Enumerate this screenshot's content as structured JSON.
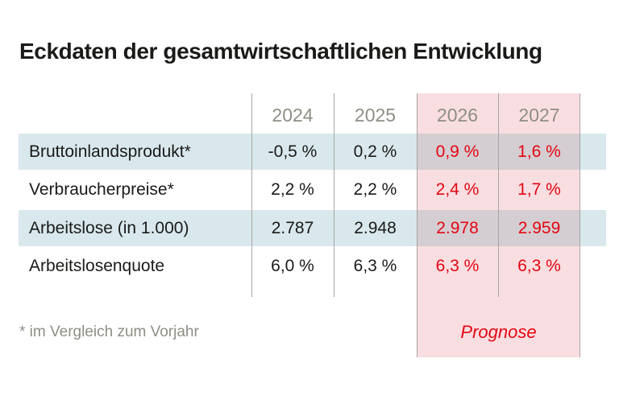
{
  "title": "Eckdaten der gesamtwirtschaftlichen Entwicklung",
  "chart_data": {
    "type": "table",
    "title": "Eckdaten der gesamtwirtschaftlichen Entwicklung",
    "columns": [
      "2024",
      "2025",
      "2026",
      "2027"
    ],
    "forecast_columns": [
      "2026",
      "2027"
    ],
    "rows": [
      {
        "label": "Bruttoinlandsprodukt*",
        "values": [
          "-0,5 %",
          "0,2 %",
          "0,9 %",
          "1,6 %"
        ]
      },
      {
        "label": "Verbraucherpreise*",
        "values": [
          "2,2 %",
          "2,2 %",
          "2,4 %",
          "1,7 %"
        ]
      },
      {
        "label": "Arbeitslose (in 1.000)",
        "values": [
          "2.787",
          "2.948",
          "2.978",
          "2.959"
        ]
      },
      {
        "label": "Arbeitslosenquote",
        "values": [
          "6,0 %",
          "6,3 %",
          "6,3 %",
          "6,3 %"
        ]
      }
    ],
    "forecast_label": "Prognose",
    "footnote": "* im Vergleich zum Vorjahr",
    "layout_hints": {
      "zebra_stripes": true,
      "forecast_highlight": "columns 2026 and 2027",
      "grid": "thin vertical column dividers only"
    }
  },
  "colors": {
    "highlight_pink": "#f9dee1",
    "stripe_blue": "#d9e8ec",
    "overlap_tone": "#d4cdd1",
    "forecast_red": "#e30613",
    "muted_gray": "#8e8e85",
    "divider_gray": "#a6a6a3",
    "text_black": "#1a1a18"
  }
}
